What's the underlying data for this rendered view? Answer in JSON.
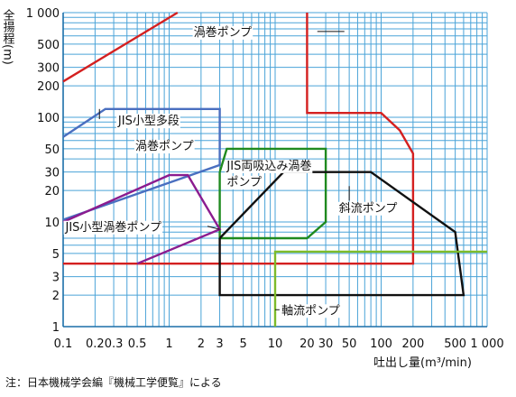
{
  "chart_data": {
    "type": "area",
    "title": "",
    "xlabel": "吐出し量(m³/min)",
    "ylabel": "全揚程(m)",
    "x_scale": "log",
    "y_scale": "log",
    "xlim": [
      0.1,
      1000
    ],
    "ylim": [
      1,
      1000
    ],
    "grid": true,
    "x_ticks": [
      {
        "v": 0.1,
        "label": "0.1"
      },
      {
        "v": 0.2,
        "label": "0.2"
      },
      {
        "v": 0.3,
        "label": "0.3"
      },
      {
        "v": 0.5,
        "label": "0.5"
      },
      {
        "v": 1,
        "label": "1"
      },
      {
        "v": 2,
        "label": "2"
      },
      {
        "v": 3,
        "label": "3"
      },
      {
        "v": 5,
        "label": "5"
      },
      {
        "v": 10,
        "label": "10"
      },
      {
        "v": 20,
        "label": "20"
      },
      {
        "v": 30,
        "label": "30"
      },
      {
        "v": 50,
        "label": "50"
      },
      {
        "v": 100,
        "label": "100"
      },
      {
        "v": 200,
        "label": "200"
      },
      {
        "v": 500,
        "label": "500"
      },
      {
        "v": 1000,
        "label": "1 000"
      }
    ],
    "y_ticks": [
      {
        "v": 1,
        "label": "1"
      },
      {
        "v": 2,
        "label": "2"
      },
      {
        "v": 3,
        "label": "3"
      },
      {
        "v": 5,
        "label": "5"
      },
      {
        "v": 10,
        "label": "10"
      },
      {
        "v": 20,
        "label": "20"
      },
      {
        "v": 30,
        "label": "30"
      },
      {
        "v": 50,
        "label": "50"
      },
      {
        "v": 100,
        "label": "100"
      },
      {
        "v": 200,
        "label": "200"
      },
      {
        "v": 300,
        "label": "300"
      },
      {
        "v": 500,
        "label": "500"
      },
      {
        "v": 1000,
        "label": "1 000"
      }
    ],
    "series": [
      {
        "name": "渦巻ポンプ",
        "color": "#d42020",
        "points": [
          [
            0.1,
            220
          ],
          [
            1.2,
            1000
          ],
          null,
          [
            0.1,
            4
          ],
          [
            200,
            4
          ],
          [
            200,
            45
          ],
          [
            150,
            75
          ],
          [
            100,
            110
          ],
          [
            20,
            110
          ],
          [
            20,
            1000
          ]
        ]
      },
      {
        "name": "JIS小型多段渦巻ポンプ",
        "color": "#4a6fc0",
        "points": [
          [
            0.1,
            65
          ],
          [
            0.25,
            120
          ],
          [
            3,
            120
          ],
          [
            3,
            35
          ],
          [
            0.1,
            10.5
          ]
        ]
      },
      {
        "name": "JIS両吸込み渦巻ポンプ",
        "color": "#1f8a1f",
        "points": [
          [
            3,
            30
          ],
          [
            3.5,
            50
          ],
          [
            30,
            50
          ],
          [
            30,
            10
          ],
          [
            20,
            7
          ],
          [
            3,
            7
          ],
          [
            3,
            30
          ]
        ]
      },
      {
        "name": "JIS小型渦巻ポンプ",
        "color": "#8b1c8f",
        "points": [
          [
            0.1,
            10
          ],
          [
            1,
            28
          ],
          [
            1.5,
            28
          ],
          [
            3,
            8.5
          ],
          [
            0.5,
            4
          ]
        ]
      },
      {
        "name": "斜流ポンプ",
        "color": "#111111",
        "points": [
          [
            3,
            7
          ],
          [
            12,
            30
          ],
          [
            80,
            30
          ],
          [
            500,
            8
          ],
          [
            600,
            2
          ],
          [
            3,
            2
          ],
          [
            3,
            7
          ]
        ]
      },
      {
        "name": "軸流ポンプ",
        "color": "#7dbb2a",
        "points": [
          [
            10,
            1
          ],
          [
            10,
            5.2
          ],
          [
            1000,
            5.2
          ]
        ]
      }
    ],
    "annotations": [
      {
        "text": "渦巻ポンプ",
        "pos": [
          1.7,
          660
        ],
        "lead": [
          [
            25,
            660
          ],
          [
            45,
            660
          ]
        ]
      },
      {
        "text": "JIS小型多段",
        "pos": [
          0.33,
          94
        ],
        "lead": [
          [
            0.22,
            120
          ],
          [
            0.22,
            96
          ]
        ]
      },
      {
        "text": "渦巻ポンプ",
        "pos": [
          0.48,
          54
        ]
      },
      {
        "text": "JIS両吸込み渦巻",
        "pos": [
          3.5,
          35
        ]
      },
      {
        "text": "ポンプ",
        "pos": [
          3.5,
          24.5
        ]
      },
      {
        "text": "JIS小型渦巻ポンプ",
        "pos": [
          0.105,
          9.1
        ],
        "lead": [
          [
            2.3,
            9.1
          ],
          [
            3,
            8.5
          ]
        ]
      },
      {
        "text": "斜流ポンプ",
        "pos": [
          40,
          13.8
        ],
        "lead": [
          [
            50,
            16
          ],
          [
            50,
            22
          ]
        ]
      },
      {
        "text": "軸流ポンプ",
        "pos": [
          11.5,
          1.45
        ],
        "lead": [
          [
            10,
            1.45
          ],
          [
            11,
            1.45
          ]
        ]
      }
    ]
  },
  "note": "注：日本機械学会編『機械工学便覧』による"
}
